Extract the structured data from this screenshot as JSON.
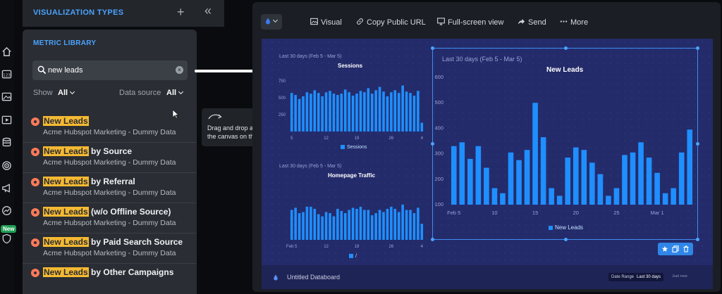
{
  "panel": {
    "viz_title": "VISUALIZATION TYPES",
    "plus": "+",
    "collapse": "«",
    "library_title": "METRIC LIBRARY",
    "search_value": "new leads",
    "show_label": "Show",
    "show_value": "All",
    "source_label": "Data source",
    "source_value": "All"
  },
  "rail": {
    "new_badge": "New",
    "icons": [
      "home-icon",
      "numbers-icon",
      "image-icon",
      "video-icon",
      "database-icon",
      "target-icon",
      "megaphone-icon",
      "analytics-icon",
      "shield-icon"
    ]
  },
  "metrics": [
    {
      "highlight": "New Leads",
      "rest": "",
      "source": "Acme Hubspot Marketing - Dummy Data"
    },
    {
      "highlight": "New Leads",
      "rest": " by Source",
      "source": "Acme Hubspot Marketing - Dummy Data"
    },
    {
      "highlight": "New Leads",
      "rest": " by Referral",
      "source": "Acme Hubspot Marketing - Dummy Data"
    },
    {
      "highlight": "New Leads",
      "rest": " (w/o Offline Source)",
      "source": "Acme Hubspot Marketing - Dummy Data"
    },
    {
      "highlight": "New Leads",
      "rest": " by Paid Search Source",
      "source": "Acme Hubspot Marketing - Dummy Data"
    },
    {
      "highlight": "New Leads",
      "rest": " by Other Campaigns",
      "source": ""
    }
  ],
  "tooltip": {
    "text": "Drag and drop a datablock to the canvas on the right."
  },
  "toolbar": {
    "visual": "Visual",
    "copy_url": "Copy Public URL",
    "fullscreen": "Full-screen view",
    "send": "Send",
    "more": "More"
  },
  "board": {
    "title": "Untitled Databoard",
    "range_label": "Date Range",
    "range_value": "Last 30 days",
    "live": "Just now"
  },
  "colors": {
    "accent": "#4aa3ff",
    "highlight": "#f5b932",
    "bar": "#1f8fff",
    "board": "#242b6a"
  },
  "chart_data": [
    {
      "type": "bar",
      "title": "Sessions",
      "subtitle": "Last 30 days (Feb 5 - Mar 5)",
      "legend": [
        "Sessions"
      ],
      "ylim": [
        0,
        800
      ],
      "yticks": [
        250,
        500,
        750
      ],
      "xticks": [
        "5",
        "12",
        "19",
        "26",
        "4"
      ],
      "values": [
        570,
        540,
        480,
        520,
        580,
        560,
        610,
        570,
        520,
        580,
        600,
        560,
        540,
        560,
        620,
        580,
        530,
        560,
        600,
        580,
        640,
        560,
        610,
        660,
        590,
        520,
        580,
        610,
        570,
        680,
        590,
        570,
        530,
        600,
        130
      ]
    },
    {
      "type": "bar",
      "title": "Homepage Traffic",
      "subtitle": "Last 30 days (Feb 5 - Mar 5)",
      "legend": [
        "/"
      ],
      "ylim": [
        0,
        100
      ],
      "yticks": [],
      "xticks": [
        "Feb 5",
        "12",
        "19",
        "26",
        "4"
      ],
      "values": [
        56,
        60,
        50,
        52,
        62,
        62,
        58,
        48,
        44,
        52,
        50,
        44,
        58,
        54,
        50,
        56,
        60,
        58,
        62,
        56,
        56,
        46,
        50,
        56,
        52,
        58,
        62,
        58,
        52,
        66,
        56,
        56,
        50,
        60,
        30
      ]
    },
    {
      "type": "bar",
      "title": "New Leads",
      "subtitle": "Last 30 days (Feb 5 - Mar 5)",
      "legend": [
        "New Leads"
      ],
      "ylim": [
        100,
        600
      ],
      "yticks": [
        100,
        200,
        300,
        400,
        500,
        600
      ],
      "xticks": [
        "Feb 5",
        "10",
        "15",
        "20",
        "25",
        "Mar 1"
      ],
      "values": [
        330,
        345,
        280,
        330,
        245,
        165,
        145,
        305,
        275,
        315,
        500,
        365,
        165,
        135,
        285,
        325,
        315,
        265,
        220,
        135,
        165,
        295,
        305,
        345,
        285,
        225,
        145,
        165,
        305,
        395
      ]
    }
  ]
}
